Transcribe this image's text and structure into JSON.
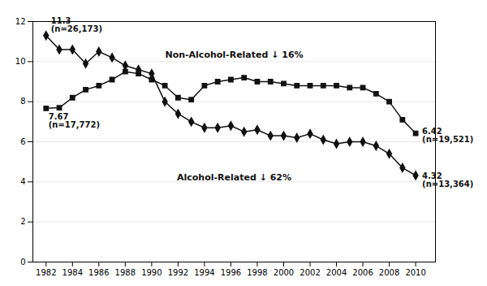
{
  "chart_data": {
    "type": "line",
    "x": [
      1982,
      1983,
      1984,
      1985,
      1986,
      1987,
      1988,
      1989,
      1990,
      1991,
      1992,
      1993,
      1994,
      1995,
      1996,
      1997,
      1998,
      1999,
      2000,
      2001,
      2002,
      2003,
      2004,
      2005,
      2006,
      2007,
      2008,
      2009,
      2010
    ],
    "series": [
      {
        "values": [
          11.3,
          10.6,
          10.6,
          9.9,
          10.5,
          10.2,
          9.8,
          9.6,
          9.4,
          8.0,
          7.4,
          7.0,
          6.7,
          6.7,
          6.8,
          6.5,
          6.6,
          6.3,
          6.3,
          6.2,
          6.4,
          6.1,
          5.9,
          6.0,
          6.0,
          5.8,
          5.4,
          4.7,
          4.32
        ],
        "color": "#111111",
        "marker": "diamond"
      },
      {
        "values": [
          7.67,
          7.7,
          8.2,
          8.6,
          8.8,
          9.1,
          9.5,
          9.4,
          9.1,
          8.8,
          8.2,
          8.1,
          8.8,
          9.0,
          9.1,
          9.2,
          9.0,
          9.0,
          8.9,
          8.8,
          8.8,
          8.8,
          8.8,
          8.7,
          8.7,
          8.4,
          8.0,
          7.1,
          6.42
        ],
        "color": "#111111",
        "marker": "square"
      }
    ],
    "annotations": [
      "11.3\n(n=26,173)",
      "7.67\n(n=17,772)",
      "6.42\n(n=19,521)",
      "4.32\n(n=13,364)",
      "Non-Alcohol-Related ↓ 16%",
      "Alcohol-Related ↓ 62%"
    ],
    "xlim": [
      1981.0,
      2011.5
    ],
    "xticks": [
      1982,
      1984,
      1986,
      1988,
      1990,
      1992,
      1994,
      1996,
      1998,
      2000,
      2002,
      2004,
      2006,
      2008,
      2010
    ],
    "ylim": [
      0,
      12
    ],
    "yticks": [
      0,
      2,
      4,
      6,
      8,
      10,
      12
    ],
    "grid": "y"
  }
}
